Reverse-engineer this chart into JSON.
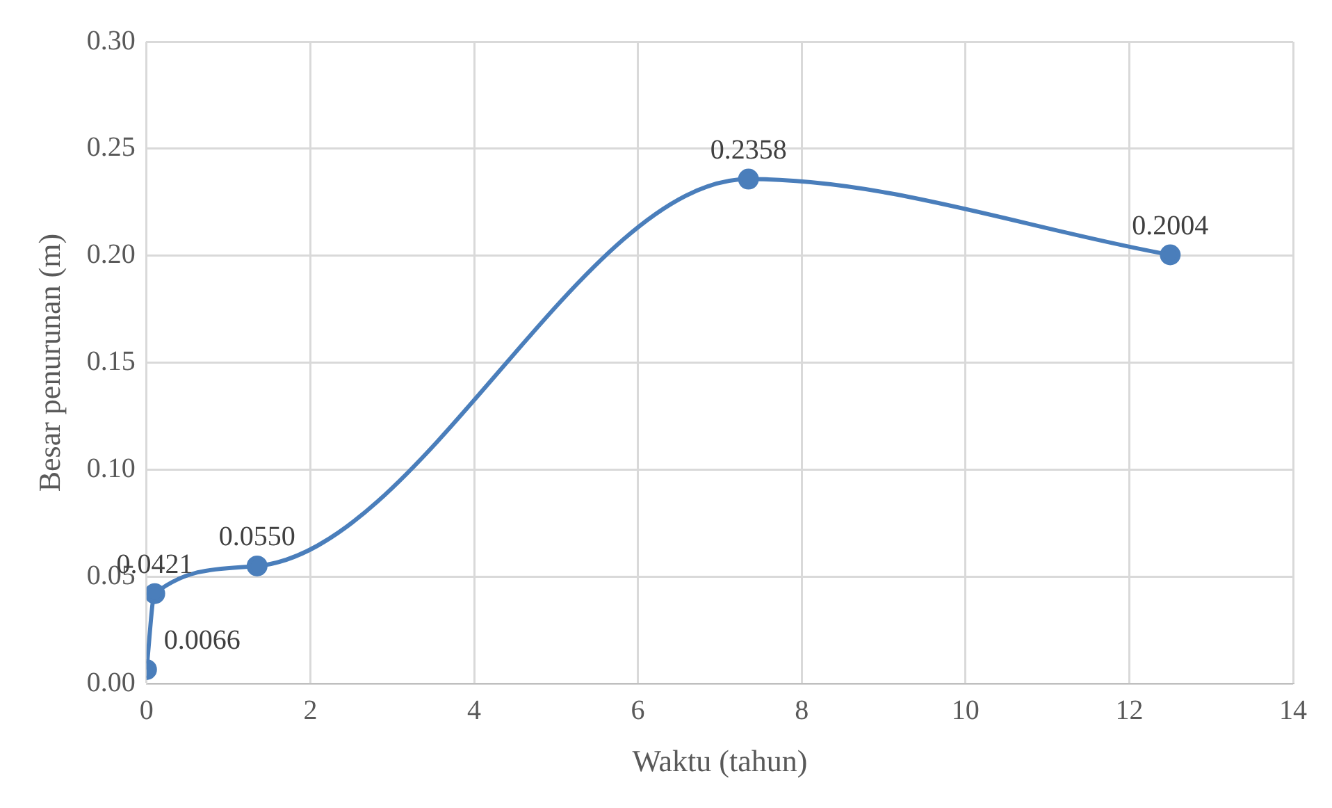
{
  "chart_data": {
    "type": "line",
    "xlabel": "Waktu (tahun)",
    "ylabel": "Besar penurunan (m)",
    "x": [
      0,
      0.1,
      1.35,
      7.35,
      12.5
    ],
    "series": [
      {
        "color": "#4a7ebb",
        "values": [
          0.0066,
          0.0421,
          0.055,
          0.2358,
          0.2004
        ],
        "value_labels": [
          "0.0066",
          "0.0421",
          "0.0550",
          "0.2358",
          "0.2004"
        ]
      }
    ],
    "xlim": [
      0,
      14
    ],
    "xticks": [
      0,
      2,
      4,
      6,
      8,
      10,
      12,
      14
    ],
    "ylim": [
      0,
      0.3
    ],
    "yticks": [
      {
        "value": 0,
        "label": "0.00"
      },
      {
        "value": 0.05,
        "label": "0.05"
      },
      {
        "value": 0.1,
        "label": "0.10"
      },
      {
        "value": 0.15,
        "label": "0.15"
      },
      {
        "value": 0.2,
        "label": "0.20"
      },
      {
        "value": 0.25,
        "label": "0.25"
      },
      {
        "value": 0.3,
        "label": "0.30"
      }
    ],
    "grid": true,
    "legend": false,
    "marker": "circle",
    "line_style": "solid"
  }
}
